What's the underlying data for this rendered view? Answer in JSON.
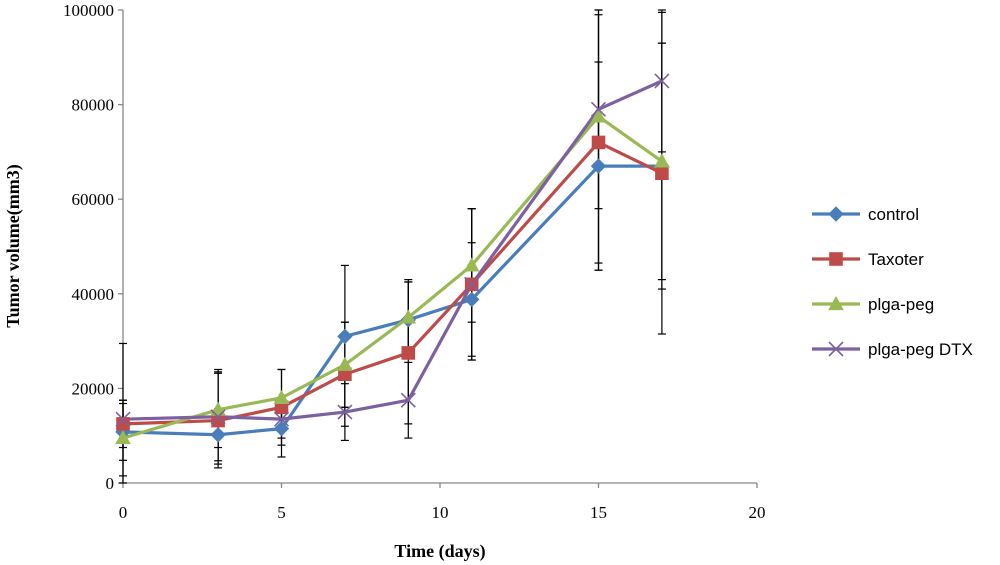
{
  "chart_data": {
    "type": "line",
    "xlabel": "Time (days)",
    "ylabel": "Tumor volume(mm3)",
    "xlim": [
      0,
      20
    ],
    "ylim": [
      0,
      100000
    ],
    "xticks": [
      0,
      5,
      10,
      15,
      20
    ],
    "yticks": [
      0,
      20000,
      40000,
      60000,
      80000,
      100000
    ],
    "grid": false,
    "legend_position": "right",
    "x": [
      0,
      3,
      5,
      7,
      9,
      11,
      15,
      17
    ],
    "series": [
      {
        "name": "control",
        "color": "#4a7ebb",
        "marker": "diamond",
        "values": [
          10800,
          10200,
          11500,
          31000,
          34500,
          38800,
          67000,
          67000
        ],
        "errors": [
          6000,
          5500,
          6000,
          15000,
          8000,
          12000,
          22000,
          26000
        ]
      },
      {
        "name": "Taxoter",
        "color": "#be4b48",
        "marker": "square",
        "values": [
          12500,
          13200,
          16000,
          23000,
          27500,
          42000,
          72000,
          65500
        ],
        "errors": [
          5000,
          10000,
          8000,
          11000,
          15000,
          16000,
          27000,
          34000
        ]
      },
      {
        "name": "plga-peg",
        "color": "#98b954",
        "marker": "triangle",
        "values": [
          9500,
          15500,
          18000,
          25000,
          35000,
          46000,
          77500,
          68000
        ],
        "errors": [
          8000,
          8000,
          6000,
          9000,
          8000,
          12000,
          31000,
          25000
        ]
      },
      {
        "name": "plga-peg DTX",
        "color": "#7d60a0",
        "marker": "cross",
        "values": [
          13500,
          14000,
          13500,
          15000,
          17500,
          42000,
          79000,
          85000
        ],
        "errors": [
          16000,
          10000,
          4000,
          6000,
          8000,
          16000,
          21000,
          15000
        ]
      }
    ]
  }
}
